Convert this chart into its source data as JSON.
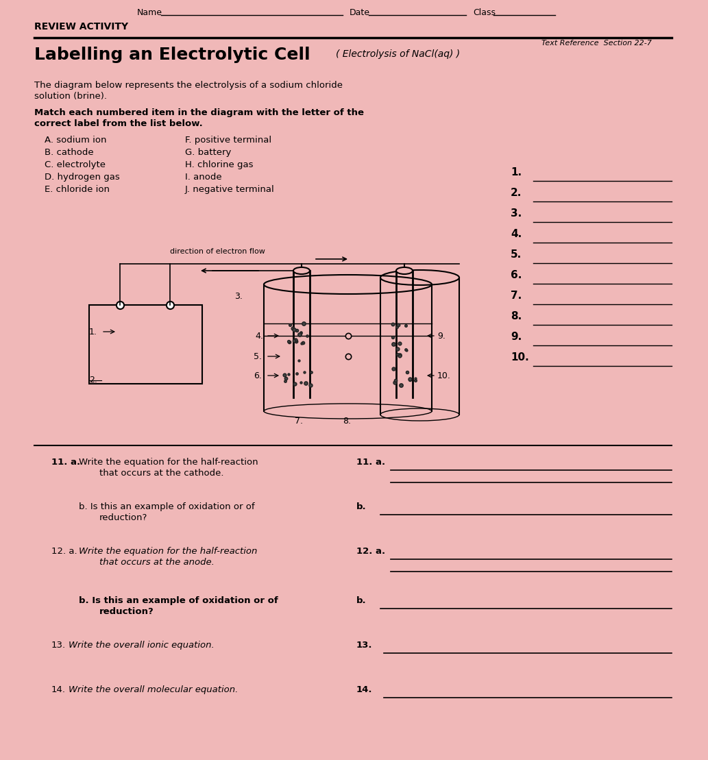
{
  "bg_color": "#f0b8b8",
  "title": "Labelling an Electrolytic Cell",
  "subtitle_handwritten": "( Electrolysis of NaCl(aq) )",
  "review_activity": "REVIEW ACTIVITY",
  "text_ref": "Text Reference  Section 22-7",
  "description": "The diagram below represents the electrolysis of a sodium chloride\nsolution (brine).",
  "match_instruction": "Match each numbered item in the diagram with the letter of the\ncorrect label from the list below.",
  "labels_left": [
    "A. sodium ion",
    "B. cathode",
    "C. electrolyte",
    "D. hydrogen gas",
    "E. chloride ion"
  ],
  "labels_right": [
    "F. positive terminal",
    "G. battery",
    "H. chlorine gas",
    "I. anode",
    "J. negative terminal"
  ],
  "answer_lines": [
    "1.",
    "2.",
    "3.",
    "4.",
    "5.",
    "6.",
    "7.",
    "8.",
    "9.",
    "10."
  ]
}
